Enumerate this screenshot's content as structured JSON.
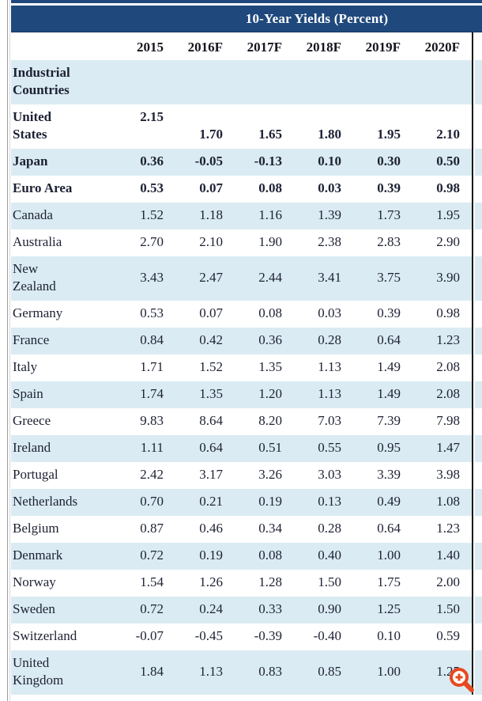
{
  "chart_data": {
    "type": "table",
    "title": "10-Year Yields (Percent)",
    "columns": [
      "2015",
      "2016F",
      "2017F",
      "2018F",
      "2019F",
      "2020F"
    ],
    "rows": [
      {
        "name": "Industrial Countries",
        "bold": true,
        "values": [
          "",
          "",
          "",
          "",
          "",
          ""
        ]
      },
      {
        "name": "United States",
        "bold": true,
        "split": true,
        "values": [
          "2.15",
          "1.70",
          "1.65",
          "1.80",
          "1.95",
          "2.10"
        ]
      },
      {
        "name": "Japan",
        "bold": true,
        "values": [
          "0.36",
          "-0.05",
          "-0.13",
          "0.10",
          "0.30",
          "0.50"
        ]
      },
      {
        "name": "Euro Area",
        "bold": true,
        "values": [
          "0.53",
          "0.07",
          "0.08",
          "0.03",
          "0.39",
          "0.98"
        ]
      },
      {
        "name": "Canada",
        "values": [
          "1.52",
          "1.18",
          "1.16",
          "1.39",
          "1.73",
          "1.95"
        ]
      },
      {
        "name": "Australia",
        "values": [
          "2.70",
          "2.10",
          "1.90",
          "2.38",
          "2.83",
          "2.90"
        ]
      },
      {
        "name": "New Zealand",
        "values": [
          "3.43",
          "2.47",
          "2.44",
          "3.41",
          "3.75",
          "3.90"
        ]
      },
      {
        "name": "Germany",
        "values": [
          "0.53",
          "0.07",
          "0.08",
          "0.03",
          "0.39",
          "0.98"
        ]
      },
      {
        "name": "France",
        "values": [
          "0.84",
          "0.42",
          "0.36",
          "0.28",
          "0.64",
          "1.23"
        ]
      },
      {
        "name": "Italy",
        "values": [
          "1.71",
          "1.52",
          "1.35",
          "1.13",
          "1.49",
          "2.08"
        ]
      },
      {
        "name": "Spain",
        "values": [
          "1.74",
          "1.35",
          "1.20",
          "1.13",
          "1.49",
          "2.08"
        ]
      },
      {
        "name": "Greece",
        "values": [
          "9.83",
          "8.64",
          "8.20",
          "7.03",
          "7.39",
          "7.98"
        ]
      },
      {
        "name": "Ireland",
        "values": [
          "1.11",
          "0.64",
          "0.51",
          "0.55",
          "0.95",
          "1.47"
        ]
      },
      {
        "name": "Portugal",
        "values": [
          "2.42",
          "3.17",
          "3.26",
          "3.03",
          "3.39",
          "3.98"
        ]
      },
      {
        "name": "Netherlands",
        "values": [
          "0.70",
          "0.21",
          "0.19",
          "0.13",
          "0.49",
          "1.08"
        ]
      },
      {
        "name": "Belgium",
        "values": [
          "0.87",
          "0.46",
          "0.34",
          "0.28",
          "0.64",
          "1.23"
        ]
      },
      {
        "name": "Denmark",
        "values": [
          "0.72",
          "0.19",
          "0.08",
          "0.40",
          "1.00",
          "1.40"
        ]
      },
      {
        "name": "Norway",
        "values": [
          "1.54",
          "1.26",
          "1.28",
          "1.50",
          "1.75",
          "2.00"
        ]
      },
      {
        "name": "Sweden",
        "values": [
          "0.72",
          "0.24",
          "0.33",
          "0.90",
          "1.25",
          "1.50"
        ]
      },
      {
        "name": "Switzerland",
        "values": [
          "-0.07",
          "-0.45",
          "-0.39",
          "-0.40",
          "0.10",
          "0.59"
        ]
      },
      {
        "name": "United Kingdom",
        "values": [
          "1.84",
          "1.13",
          "0.83",
          "0.85",
          "1.00",
          "1.25"
        ]
      }
    ]
  },
  "ui": {
    "zoom_icon": "magnifier-plus",
    "colors": {
      "header_bg": "#1F497D",
      "row_stripe": "#DAEBF3",
      "divider": "#1B1B1B",
      "zoom_icon": "#E8491F"
    }
  }
}
